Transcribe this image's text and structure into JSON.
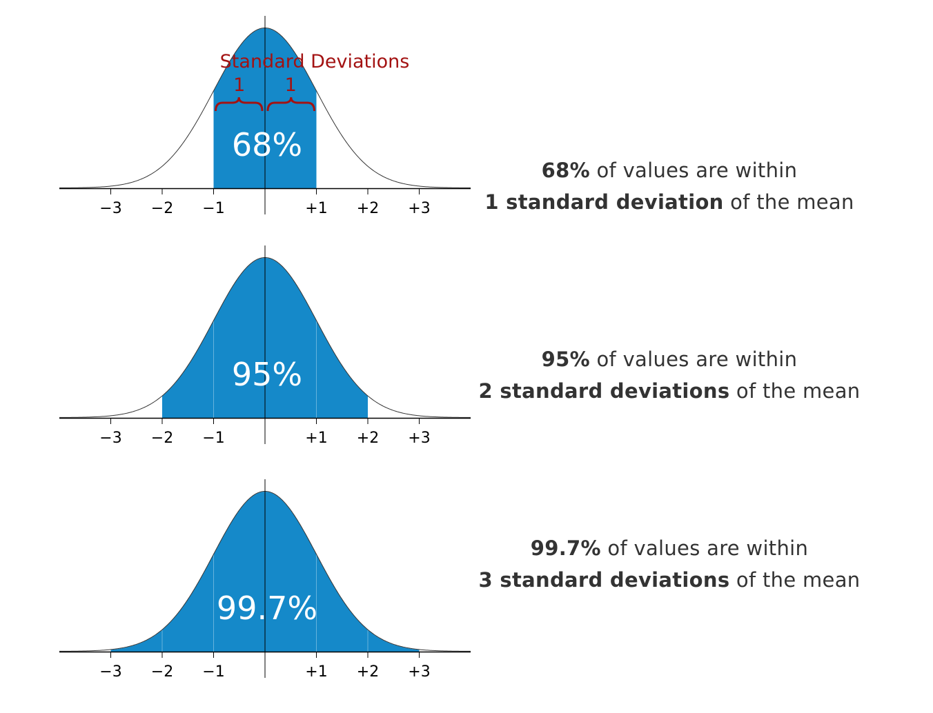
{
  "chart_data": [
    {
      "type": "area",
      "distribution": "normal",
      "x_ticks": [
        "−3",
        "−2",
        "−1",
        "+1",
        "+2",
        "+3"
      ],
      "shaded_range": [
        -1,
        1
      ],
      "center_label": "68%",
      "annotation": {
        "title": "Standard Deviations",
        "left": "1",
        "right": "1"
      },
      "fill_color": "#1589C9",
      "curve_color": "#333333",
      "annotation_color": "#A31212"
    },
    {
      "type": "area",
      "distribution": "normal",
      "x_ticks": [
        "−3",
        "−2",
        "−1",
        "+1",
        "+2",
        "+3"
      ],
      "shaded_range": [
        -2,
        2
      ],
      "center_label": "95%",
      "fill_color": "#1589C9",
      "curve_color": "#333333"
    },
    {
      "type": "area",
      "distribution": "normal",
      "x_ticks": [
        "−3",
        "−2",
        "−1",
        "+1",
        "+2",
        "+3"
      ],
      "shaded_range": [
        -3,
        3
      ],
      "center_label": "99.7%",
      "fill_color": "#1589C9",
      "curve_color": "#333333"
    }
  ],
  "captions": [
    {
      "bold_pct": "68%",
      "text1": " of values are within",
      "bold_sd": "1 standard deviation",
      "text2": " of the mean"
    },
    {
      "bold_pct": "95%",
      "text1": " of values are within",
      "bold_sd": "2 standard deviations",
      "text2": " of the mean"
    },
    {
      "bold_pct": "99.7%",
      "text1": " of values are within",
      "bold_sd": "3 standard deviations",
      "text2": " of the mean"
    }
  ]
}
